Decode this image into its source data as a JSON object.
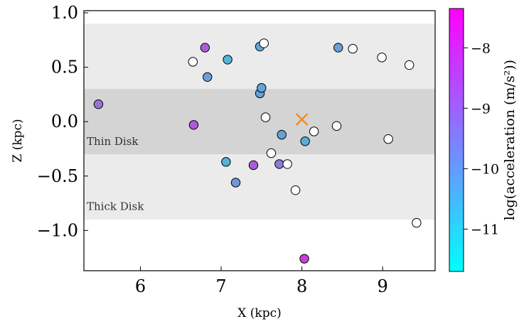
{
  "chart_data": {
    "type": "scatter",
    "xlabel": "X (kpc)",
    "ylabel": "Z (kpc)",
    "xlim": [
      5.3,
      9.65
    ],
    "ylim": [
      -1.37,
      1.02
    ],
    "xticks": [
      6,
      7,
      8,
      9
    ],
    "xtick_labels": [
      "6",
      "7",
      "8",
      "9"
    ],
    "yticks": [
      1.0,
      0.5,
      0.0,
      -0.5,
      -1.0
    ],
    "ytick_labels": [
      "1.0",
      "0.5",
      "0.0",
      "−0.5",
      "−1.0"
    ],
    "grid": false,
    "bands": [
      {
        "name": "Thick Disk",
        "z_range": [
          -0.9,
          0.9
        ],
        "color": "#ebebeb",
        "label_pos": [
          -0.78
        ]
      },
      {
        "name": "Thin Disk",
        "z_range": [
          -0.3,
          0.3
        ],
        "color": "#d4d4d4",
        "label_pos": [
          -0.18
        ]
      }
    ],
    "sun": {
      "x": 8.0,
      "z": 0.02,
      "marker": "x",
      "color": "#f28c1e"
    },
    "colorbar": {
      "label": "log(acceleration (m/s²))",
      "range": [
        -11.7,
        -7.35
      ],
      "ticks": [
        -8,
        -9,
        -10,
        -11
      ],
      "tick_labels": [
        "−8",
        "−9",
        "−10",
        "−11"
      ],
      "colormap": [
        "#00ffff",
        "#ff00ff"
      ]
    },
    "points": [
      {
        "x": 5.48,
        "z": 0.16,
        "c": -9.1
      },
      {
        "x": 6.65,
        "z": 0.55,
        "c": null
      },
      {
        "x": 6.8,
        "z": 0.68,
        "c": -8.5
      },
      {
        "x": 6.83,
        "z": 0.41,
        "c": -10.3
      },
      {
        "x": 7.08,
        "z": 0.57,
        "c": -10.8
      },
      {
        "x": 6.66,
        "z": -0.03,
        "c": -8.4
      },
      {
        "x": 7.06,
        "z": -0.37,
        "c": -10.7
      },
      {
        "x": 7.18,
        "z": -0.56,
        "c": -10.0
      },
      {
        "x": 7.4,
        "z": -0.4,
        "c": -8.5
      },
      {
        "x": 7.48,
        "z": 0.69,
        "c": -10.5
      },
      {
        "x": 7.53,
        "z": 0.72,
        "c": null
      },
      {
        "x": 7.48,
        "z": 0.26,
        "c": -10.3
      },
      {
        "x": 7.5,
        "z": 0.31,
        "c": -10.4
      },
      {
        "x": 7.55,
        "z": 0.04,
        "c": null
      },
      {
        "x": 7.62,
        "z": -0.29,
        "c": null
      },
      {
        "x": 7.72,
        "z": -0.39,
        "c": -9.3
      },
      {
        "x": 7.75,
        "z": -0.12,
        "c": -10.3
      },
      {
        "x": 7.82,
        "z": -0.39,
        "c": null
      },
      {
        "x": 7.92,
        "z": -0.63,
        "c": null
      },
      {
        "x": 8.03,
        "z": -1.26,
        "c": -7.7
      },
      {
        "x": 8.04,
        "z": -0.18,
        "c": -10.6
      },
      {
        "x": 8.15,
        "z": -0.09,
        "c": null
      },
      {
        "x": 8.43,
        "z": -0.04,
        "c": null
      },
      {
        "x": 8.45,
        "z": 0.68,
        "c": -10.3
      },
      {
        "x": 8.63,
        "z": 0.67,
        "c": null
      },
      {
        "x": 8.99,
        "z": 0.59,
        "c": null
      },
      {
        "x": 9.07,
        "z": -0.16,
        "c": null
      },
      {
        "x": 9.33,
        "z": 0.52,
        "c": null
      },
      {
        "x": 9.42,
        "z": -0.93,
        "c": null
      }
    ]
  }
}
